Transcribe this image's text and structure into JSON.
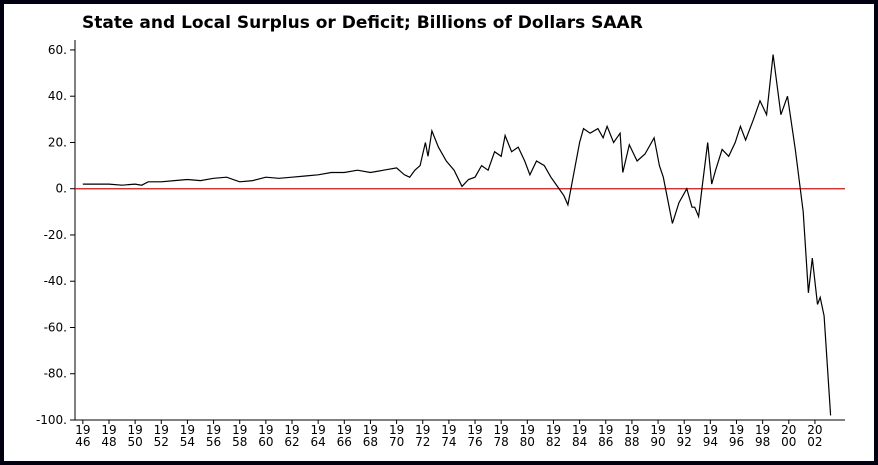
{
  "chart_data": {
    "type": "line",
    "title": "State and Local Surplus or Deficit; Billions of Dollars SAAR",
    "xlim": [
      1945.4,
      2004.3
    ],
    "ylim": [
      -100,
      64.3
    ],
    "yticks": [
      {
        "value": 60,
        "label": "60."
      },
      {
        "value": 40,
        "label": "40."
      },
      {
        "value": 20,
        "label": "20."
      },
      {
        "value": 0,
        "label": "0."
      },
      {
        "value": -20,
        "label": "-20."
      },
      {
        "value": -40,
        "label": "-40."
      },
      {
        "value": -60,
        "label": "-60."
      },
      {
        "value": -80,
        "label": "-80."
      },
      {
        "value": -100,
        "label": "-100."
      }
    ],
    "xticks": [
      {
        "value": 1946,
        "label": "19\n46"
      },
      {
        "value": 1948,
        "label": "19\n48"
      },
      {
        "value": 1950,
        "label": "19\n50"
      },
      {
        "value": 1952,
        "label": "19\n52"
      },
      {
        "value": 1954,
        "label": "19\n54"
      },
      {
        "value": 1956,
        "label": "19\n56"
      },
      {
        "value": 1958,
        "label": "19\n58"
      },
      {
        "value": 1960,
        "label": "19\n60"
      },
      {
        "value": 1962,
        "label": "19\n62"
      },
      {
        "value": 1964,
        "label": "19\n64"
      },
      {
        "value": 1966,
        "label": "19\n66"
      },
      {
        "value": 1968,
        "label": "19\n68"
      },
      {
        "value": 1970,
        "label": "19\n70"
      },
      {
        "value": 1972,
        "label": "19\n72"
      },
      {
        "value": 1974,
        "label": "19\n74"
      },
      {
        "value": 1976,
        "label": "19\n76"
      },
      {
        "value": 1978,
        "label": "19\n78"
      },
      {
        "value": 1980,
        "label": "19\n80"
      },
      {
        "value": 1982,
        "label": "19\n82"
      },
      {
        "value": 1984,
        "label": "19\n84"
      },
      {
        "value": 1986,
        "label": "19\n86"
      },
      {
        "value": 1988,
        "label": "19\n88"
      },
      {
        "value": 1990,
        "label": "19\n90"
      },
      {
        "value": 1992,
        "label": "19\n92"
      },
      {
        "value": 1994,
        "label": "19\n94"
      },
      {
        "value": 1996,
        "label": "19\n96"
      },
      {
        "value": 1998,
        "label": "19\n98"
      },
      {
        "value": 2000,
        "label": "20\n00"
      },
      {
        "value": 2002,
        "label": "20\n02"
      }
    ],
    "reference_line": {
      "value": 0,
      "color": "#ff0000"
    },
    "series": [
      {
        "color": "#000000",
        "x": [
          1946,
          1947,
          1948,
          1949,
          1950,
          1950.5,
          1951,
          1952,
          1953,
          1954,
          1955,
          1956,
          1957,
          1958,
          1959,
          1960,
          1961,
          1962,
          1963,
          1964,
          1965,
          1966,
          1967,
          1968,
          1969,
          1970,
          1970.6,
          1971,
          1971.4,
          1971.8,
          1972.2,
          1972.4,
          1972.7,
          1973.2,
          1973.8,
          1974.4,
          1975,
          1975.5,
          1976,
          1976.5,
          1977,
          1977.5,
          1978,
          1978.3,
          1978.8,
          1979.3,
          1979.8,
          1980.2,
          1980.7,
          1981.3,
          1981.8,
          1982.3,
          1982.8,
          1983.1,
          1983.6,
          1984,
          1984.3,
          1984.8,
          1985.4,
          1985.8,
          1986.1,
          1986.6,
          1987.1,
          1987.3,
          1987.8,
          1988.4,
          1989,
          1989.7,
          1990.1,
          1990.4,
          1991.1,
          1991.6,
          1992.2,
          1992.6,
          1992.8,
          1993.1,
          1993.4,
          1993.8,
          1994.1,
          1994.4,
          1994.9,
          1995.4,
          1995.9,
          1996.3,
          1996.7,
          1997.3,
          1997.8,
          1998.3,
          1998.8,
          1999.4,
          1999.9,
          2000.5,
          2001.1,
          2001.5,
          2001.8,
          2002.2,
          2002.4,
          2002.7,
          2003.2
        ],
        "values": [
          2,
          2,
          2,
          1.5,
          2,
          1.5,
          3,
          3,
          3.5,
          4,
          3.5,
          4.5,
          5,
          3,
          3.5,
          5,
          4.5,
          5,
          5.5,
          6,
          7,
          7,
          8,
          7,
          8,
          9,
          6,
          5,
          8,
          10,
          20,
          14,
          25,
          18,
          12,
          8,
          1,
          4,
          5,
          10,
          8,
          16,
          14,
          23,
          16,
          18,
          12,
          6,
          12,
          10,
          5,
          1,
          -3,
          -7,
          8,
          20,
          26,
          24,
          26,
          22,
          27,
          20,
          24,
          7,
          19,
          12,
          15,
          22,
          10,
          5,
          -15,
          -6,
          0,
          -8,
          -8,
          -12,
          2,
          20,
          2,
          8,
          17,
          14,
          20,
          27,
          21,
          30,
          38,
          32,
          58,
          32,
          40,
          17,
          -10,
          -45,
          -30,
          -50,
          -47,
          -55,
          -98
        ]
      }
    ]
  }
}
